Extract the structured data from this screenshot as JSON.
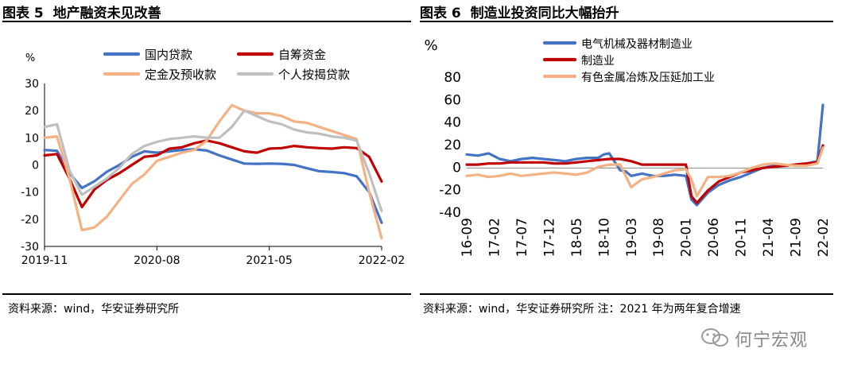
{
  "left": {
    "title_prefix": "图表 5",
    "title_text": "地产融资未见改善",
    "source": "资料来源：wind，华安证券研究所"
  },
  "right": {
    "title_prefix": "图表 6",
    "title_text": "制造业投资同比大幅抬升",
    "source": "资料来源：wind，华安证券研究所  注：2021 年为两年复合增速"
  },
  "watermark": {
    "text": "何宁宏观",
    "icon": "wechat-icon"
  },
  "chart_data": [
    {
      "type": "line",
      "title": "地产融资未见改善",
      "ylabel": "%",
      "ylim": [
        -30,
        30
      ],
      "yticks": [
        -30,
        -20,
        -10,
        0,
        10,
        20,
        30
      ],
      "xlim": [
        0,
        27
      ],
      "xticks": [
        {
          "x": 0,
          "label": "2019-11"
        },
        {
          "x": 9,
          "label": "2020-08"
        },
        {
          "x": 18,
          "label": "2021-05"
        },
        {
          "x": 27,
          "label": "2022-02"
        }
      ],
      "legend_position": "top",
      "series": [
        {
          "name": "国内贷款",
          "color": "#4472C4",
          "x": [
            0,
            1,
            2,
            3,
            4,
            5,
            6,
            7,
            8,
            9,
            10,
            11,
            12,
            13,
            14,
            15,
            16,
            17,
            18,
            19,
            20,
            21,
            22,
            23,
            24,
            25,
            26,
            27
          ],
          "values": [
            5.5,
            5.2,
            -3,
            -8.5,
            -6,
            -2.5,
            0,
            3,
            5,
            4.5,
            5,
            5.5,
            5.8,
            5.3,
            3.5,
            2,
            0.5,
            0.4,
            0.5,
            0.4,
            0,
            -1.2,
            -2.3,
            -2.6,
            -3,
            -4.2,
            -10,
            -21.3
          ]
        },
        {
          "name": "自筹资金",
          "color": "#C00000",
          "x": [
            0,
            1,
            2,
            3,
            4,
            5,
            6,
            7,
            8,
            9,
            10,
            11,
            12,
            13,
            14,
            15,
            16,
            17,
            18,
            19,
            20,
            21,
            22,
            23,
            24,
            25,
            26,
            27
          ],
          "values": [
            3.5,
            4,
            -5,
            -15.5,
            -9,
            -5.5,
            -3,
            0,
            3,
            3.5,
            6,
            6.5,
            8,
            9,
            8,
            6.5,
            5,
            4.5,
            6,
            6.2,
            7,
            6.5,
            6.2,
            6,
            6.5,
            6.2,
            3,
            -6.1
          ]
        },
        {
          "name": "定金及预收款",
          "color": "#F4B183",
          "x": [
            0,
            1,
            2,
            3,
            4,
            5,
            6,
            7,
            8,
            9,
            10,
            11,
            12,
            13,
            14,
            15,
            16,
            17,
            18,
            19,
            20,
            21,
            22,
            23,
            24,
            25,
            26,
            27
          ],
          "values": [
            10,
            10.5,
            -5,
            -24,
            -23,
            -19,
            -13,
            -7,
            -3.5,
            1.5,
            3,
            4.5,
            5.5,
            9,
            16,
            22,
            20,
            19,
            19,
            18,
            16,
            15.5,
            14,
            12.5,
            11,
            9.5,
            -10,
            -27
          ]
        },
        {
          "name": "个人按揭贷款",
          "color": "#BFBFBF",
          "x": [
            0,
            1,
            2,
            3,
            4,
            5,
            6,
            7,
            8,
            9,
            10,
            11,
            12,
            13,
            14,
            15,
            16,
            17,
            18,
            19,
            20,
            21,
            22,
            23,
            24,
            25,
            26,
            27
          ],
          "values": [
            14,
            15,
            -2,
            -11,
            -8,
            -5,
            -1,
            4,
            7,
            8.5,
            9.5,
            10,
            10.5,
            10,
            10,
            14,
            20,
            18,
            16,
            15,
            13,
            12,
            11.5,
            10.5,
            10,
            9,
            -3,
            -17
          ]
        }
      ]
    },
    {
      "type": "line",
      "title": "制造业投资同比大幅抬升",
      "ylabel": "%",
      "ylim": [
        -40,
        80
      ],
      "yticks": [
        -40,
        -20,
        0,
        20,
        40,
        60,
        80
      ],
      "xlim": [
        0,
        65
      ],
      "xticks": [
        {
          "x": 0,
          "label": "16-09"
        },
        {
          "x": 5,
          "label": "17-02"
        },
        {
          "x": 10,
          "label": "17-07"
        },
        {
          "x": 15,
          "label": "17-12"
        },
        {
          "x": 20,
          "label": "18-05"
        },
        {
          "x": 25,
          "label": "18-10"
        },
        {
          "x": 30,
          "label": "19-03"
        },
        {
          "x": 35,
          "label": "19-08"
        },
        {
          "x": 40,
          "label": "20-01"
        },
        {
          "x": 45,
          "label": "20-06"
        },
        {
          "x": 50,
          "label": "20-11"
        },
        {
          "x": 55,
          "label": "21-04"
        },
        {
          "x": 60,
          "label": "21-09"
        },
        {
          "x": 65,
          "label": "22-02"
        }
      ],
      "legend_position": "top-left",
      "series": [
        {
          "name": "电气机械及器材制造业",
          "color": "#4472C4",
          "x": [
            0,
            2,
            4,
            6,
            8,
            10,
            12,
            14,
            16,
            18,
            20,
            22,
            24,
            25,
            26,
            28,
            29,
            30,
            32,
            34,
            36,
            38,
            40,
            41,
            42,
            44,
            46,
            48,
            50,
            52,
            54,
            56,
            58,
            60,
            62,
            63,
            64,
            65
          ],
          "values": [
            12,
            11,
            13,
            8,
            6,
            8,
            9,
            8,
            7,
            6,
            8,
            9,
            9,
            12,
            13,
            -2,
            -3,
            -7,
            -5,
            -7,
            -7,
            -6,
            -7,
            -28,
            -33,
            -22,
            -15,
            -11,
            -8,
            -4,
            0,
            2,
            2,
            3,
            4,
            5,
            6,
            56
          ]
        },
        {
          "name": "制造业",
          "color": "#C00000",
          "x": [
            0,
            2,
            4,
            6,
            8,
            10,
            12,
            14,
            16,
            18,
            20,
            22,
            24,
            26,
            28,
            30,
            32,
            34,
            36,
            38,
            40,
            41,
            42,
            44,
            46,
            48,
            50,
            52,
            54,
            56,
            58,
            60,
            62,
            64,
            65
          ],
          "values": [
            3,
            3,
            4,
            4,
            5,
            5,
            5,
            5,
            4,
            4,
            5,
            6,
            7,
            8,
            8,
            6,
            3,
            3,
            3,
            3,
            3,
            -25,
            -31,
            -20,
            -12,
            -8,
            -4,
            -2,
            0,
            1,
            2,
            3,
            4,
            5,
            20
          ]
        },
        {
          "name": "有色金属冶炼及压延加工业",
          "color": "#F4B183",
          "x": [
            0,
            2,
            4,
            6,
            8,
            10,
            12,
            14,
            16,
            18,
            20,
            22,
            24,
            26,
            28,
            30,
            32,
            34,
            36,
            38,
            40,
            41,
            42,
            44,
            46,
            48,
            50,
            52,
            54,
            56,
            58,
            60,
            62,
            64,
            65
          ],
          "values": [
            -7,
            -6,
            -8,
            -7,
            -5,
            -7,
            -6,
            -5,
            -4,
            -5,
            -6,
            -4,
            1,
            3,
            3,
            -17,
            -10,
            -8,
            -5,
            -2,
            -1,
            -10,
            -25,
            -8,
            -8,
            -7,
            -4,
            0,
            3,
            4,
            3,
            2,
            2,
            4,
            18
          ]
        }
      ]
    }
  ]
}
